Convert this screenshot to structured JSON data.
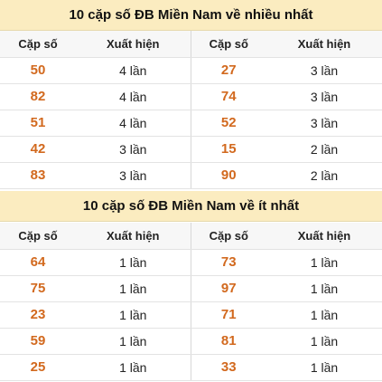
{
  "sections": [
    {
      "title": "10 cặp số ĐB Miền Nam về nhiều nhất",
      "headers": [
        "Cặp số",
        "Xuất hiện",
        "Cặp số",
        "Xuất hiện"
      ],
      "rows": [
        {
          "left_num": "50",
          "left_count": "4 lần",
          "right_num": "27",
          "right_count": "3 lần"
        },
        {
          "left_num": "82",
          "left_count": "4 lần",
          "right_num": "74",
          "right_count": "3 lần"
        },
        {
          "left_num": "51",
          "left_count": "4 lần",
          "right_num": "52",
          "right_count": "3 lần"
        },
        {
          "left_num": "42",
          "left_count": "3 lần",
          "right_num": "15",
          "right_count": "2 lần"
        },
        {
          "left_num": "83",
          "left_count": "3 lần",
          "right_num": "90",
          "right_count": "2 lần"
        }
      ]
    },
    {
      "title": "10 cặp số ĐB Miền Nam về ít nhất",
      "headers": [
        "Cặp số",
        "Xuất hiện",
        "Cặp số",
        "Xuất hiện"
      ],
      "rows": [
        {
          "left_num": "64",
          "left_count": "1 lần",
          "right_num": "73",
          "right_count": "1 lần"
        },
        {
          "left_num": "75",
          "left_count": "1 lần",
          "right_num": "97",
          "right_count": "1 lần"
        },
        {
          "left_num": "23",
          "left_count": "1 lần",
          "right_num": "71",
          "right_count": "1 lần"
        },
        {
          "left_num": "59",
          "left_count": "1 lần",
          "right_num": "81",
          "right_count": "1 lần"
        },
        {
          "left_num": "25",
          "left_count": "1 lần",
          "right_num": "33",
          "right_count": "1 lần"
        }
      ]
    }
  ],
  "colors": {
    "title_bg": "#fbecc0",
    "number": "#d2691e",
    "header_bg": "#f7f7f7"
  }
}
